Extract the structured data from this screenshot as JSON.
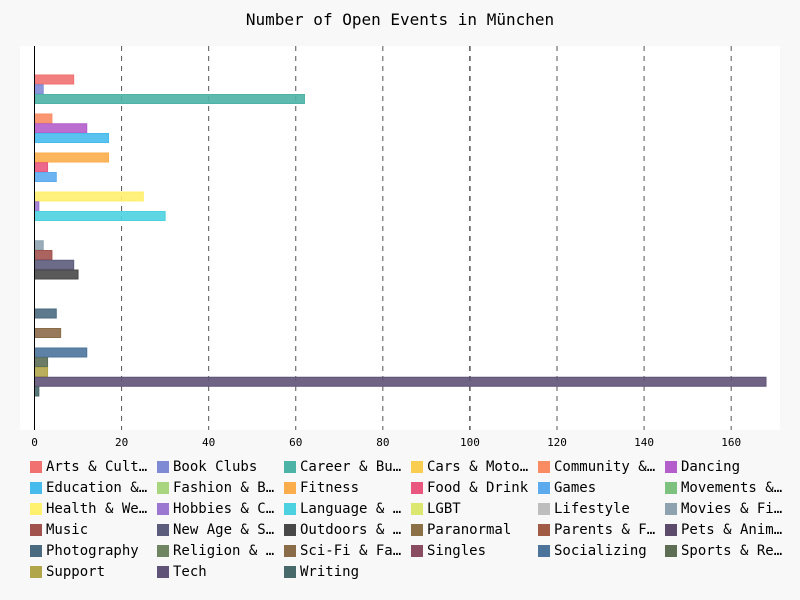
{
  "chart_data": {
    "type": "bar",
    "orientation": "horizontal",
    "title": "Number of Open Events in München",
    "xlabel": "",
    "ylabel": "",
    "xlim": [
      0,
      172
    ],
    "x_ticks": [
      0,
      20,
      40,
      60,
      80,
      100,
      120,
      140,
      160
    ],
    "grid": "vertical-dashed",
    "legend_position": "bottom",
    "series": [
      {
        "name": "Arts & Culture",
        "color": "#f17171",
        "value": 9
      },
      {
        "name": "Book Clubs",
        "color": "#7f8ad5",
        "value": 2
      },
      {
        "name": "Career & Business",
        "color": "#4cb3a6",
        "value": 62
      },
      {
        "name": "Cars & Motorcycles",
        "color": "#f9cd4f",
        "value": 0
      },
      {
        "name": "Community & Environment",
        "color": "#f98c63",
        "value": 4
      },
      {
        "name": "Dancing",
        "color": "#b45ecb",
        "value": 12
      },
      {
        "name": "Education & Learning",
        "color": "#47bbec",
        "value": 17
      },
      {
        "name": "Fashion & Beauty",
        "color": "#a7d67f",
        "value": 0
      },
      {
        "name": "Fitness",
        "color": "#fbad4b",
        "value": 17
      },
      {
        "name": "Food & Drink",
        "color": "#e9567e",
        "value": 3
      },
      {
        "name": "Games",
        "color": "#5cabef",
        "value": 5
      },
      {
        "name": "Movements & Politics",
        "color": "#7cc27e",
        "value": 0
      },
      {
        "name": "Health & Wellbeing",
        "color": "#fff06e",
        "value": 25
      },
      {
        "name": "Hobbies & Crafts",
        "color": "#9c77d2",
        "value": 1
      },
      {
        "name": "Language & Ethnic Identity",
        "color": "#4dd1e1",
        "value": 30
      },
      {
        "name": "LGBT",
        "color": "#dce76f",
        "value": 0
      },
      {
        "name": "Lifestyle",
        "color": "#bebebe",
        "value": 0
      },
      {
        "name": "Movies & Film",
        "color": "#8ea3af",
        "value": 2
      },
      {
        "name": "Music",
        "color": "#a1524c",
        "value": 4
      },
      {
        "name": "New Age & Spirituality",
        "color": "#5c5c7c",
        "value": 9
      },
      {
        "name": "Outdoors & Adventure",
        "color": "#484848",
        "value": 10
      },
      {
        "name": "Paranormal",
        "color": "#8c7148",
        "value": 0
      },
      {
        "name": "Parents & Family",
        "color": "#a15a44",
        "value": 0
      },
      {
        "name": "Pets & Animals",
        "color": "#5c4b6b",
        "value": 0
      },
      {
        "name": "Photography",
        "color": "#4a6b7f",
        "value": 5
      },
      {
        "name": "Religion & Beliefs",
        "color": "#6f8461",
        "value": 0
      },
      {
        "name": "Sci-Fi & Fantasy",
        "color": "#8b6c49",
        "value": 6
      },
      {
        "name": "Singles",
        "color": "#8a4c60",
        "value": 0
      },
      {
        "name": "Socializing",
        "color": "#4c749b",
        "value": 12
      },
      {
        "name": "Sports & Recreation",
        "color": "#5d6e55",
        "value": 3
      },
      {
        "name": "Support",
        "color": "#b1a64a",
        "value": 3
      },
      {
        "name": "Tech",
        "color": "#5f5377",
        "value": 168
      },
      {
        "name": "Writing",
        "color": "#486969",
        "value": 1
      }
    ]
  }
}
